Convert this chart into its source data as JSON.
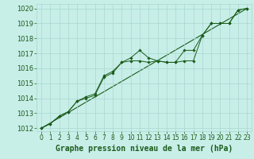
{
  "xlabel": "Graphe pression niveau de la mer (hPa)",
  "ylim": [
    1011.8,
    1020.3
  ],
  "xlim": [
    -0.5,
    23.5
  ],
  "yticks": [
    1012,
    1013,
    1014,
    1015,
    1016,
    1017,
    1018,
    1019,
    1020
  ],
  "xticks": [
    0,
    1,
    2,
    3,
    4,
    5,
    6,
    7,
    8,
    9,
    10,
    11,
    12,
    13,
    14,
    15,
    16,
    17,
    18,
    19,
    20,
    21,
    22,
    23
  ],
  "series1_x": [
    0,
    1,
    2,
    3,
    4,
    5,
    6,
    7,
    8,
    9,
    10,
    11,
    12,
    13,
    14,
    15,
    16,
    17,
    18,
    19,
    20,
    21,
    22,
    23
  ],
  "series1_y": [
    1012.0,
    1012.3,
    1012.8,
    1013.1,
    1013.8,
    1014.1,
    1014.3,
    1015.5,
    1015.8,
    1016.4,
    1016.7,
    1017.2,
    1016.7,
    1016.5,
    1016.4,
    1016.4,
    1017.2,
    1017.2,
    1018.2,
    1019.0,
    1019.0,
    1019.0,
    1019.9,
    1020.0
  ],
  "series2_x": [
    0,
    1,
    2,
    3,
    4,
    5,
    6,
    7,
    8,
    9,
    10,
    11,
    12,
    13,
    14,
    15,
    16,
    17,
    18,
    19,
    20,
    21,
    22,
    23
  ],
  "series2_y": [
    1012.0,
    1012.3,
    1012.8,
    1013.1,
    1013.8,
    1014.0,
    1014.2,
    1015.4,
    1015.7,
    1016.4,
    1016.5,
    1016.5,
    1016.4,
    1016.5,
    1016.4,
    1016.4,
    1016.5,
    1016.5,
    1018.2,
    1019.0,
    1019.0,
    1019.0,
    1019.9,
    1020.0
  ],
  "trend_x": [
    0,
    23
  ],
  "trend_y": [
    1012.0,
    1020.0
  ],
  "line_color": "#1a5c1a",
  "marker_color": "#1a5c1a",
  "bg_color": "#c8eee8",
  "grid_color": "#a8d8d0",
  "label_color": "#1a5c1a",
  "xlabel_fontsize": 7,
  "tick_fontsize": 5.5,
  "ytick_fontsize": 6.0
}
